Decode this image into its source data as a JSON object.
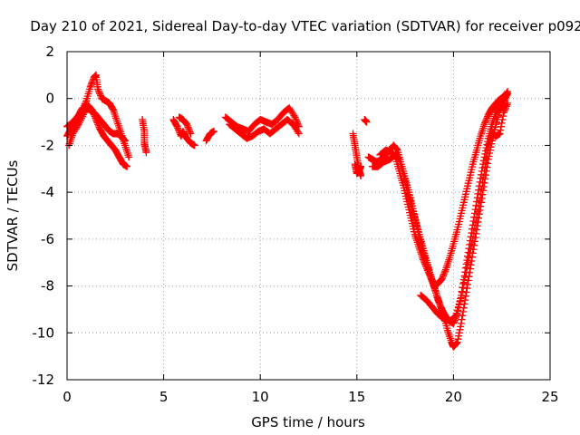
{
  "chart_data": {
    "type": "scatter",
    "title": "Day 210 of 2021, Sidereal Day-to-day VTEC variation (SDTVAR) for receiver p092",
    "xlabel": "GPS time / hours",
    "ylabel": "SDTVAR / TECUs",
    "xlim": [
      0,
      25
    ],
    "ylim": [
      -12,
      2
    ],
    "xticks": [
      0,
      5,
      10,
      15,
      20,
      25
    ],
    "yticks": [
      -12,
      -10,
      -8,
      -6,
      -4,
      -2,
      0,
      2
    ],
    "grid": true,
    "marker": "+",
    "series": [
      {
        "name": "receiver p092",
        "color": "#ff0000",
        "segments": [
          [
            [
              0.0,
              -1.6
            ],
            [
              0.2,
              -1.3
            ],
            [
              0.4,
              -1.0
            ],
            [
              0.6,
              -0.8
            ],
            [
              0.8,
              -0.5
            ],
            [
              1.0,
              -0.1
            ],
            [
              1.2,
              0.5
            ],
            [
              1.4,
              0.9
            ],
            [
              1.5,
              1.0
            ],
            [
              1.6,
              0.4
            ],
            [
              1.8,
              0.0
            ],
            [
              2.0,
              -0.1
            ],
            [
              2.2,
              -0.2
            ],
            [
              2.4,
              -0.5
            ],
            [
              2.6,
              -1.0
            ],
            [
              2.8,
              -1.5
            ],
            [
              3.0,
              -2.0
            ],
            [
              3.2,
              -2.5
            ]
          ],
          [
            [
              0.0,
              -1.2
            ],
            [
              0.3,
              -1.0
            ],
            [
              0.6,
              -0.7
            ],
            [
              0.8,
              -0.4
            ],
            [
              1.0,
              -0.4
            ],
            [
              1.2,
              -0.5
            ],
            [
              1.4,
              -0.6
            ],
            [
              1.6,
              -0.8
            ],
            [
              1.8,
              -1.0
            ],
            [
              2.0,
              -1.2
            ],
            [
              2.2,
              -1.4
            ],
            [
              2.4,
              -1.5
            ],
            [
              2.6,
              -1.5
            ],
            [
              2.8,
              -1.6
            ],
            [
              3.0,
              -1.8
            ]
          ],
          [
            [
              0.1,
              -2.0
            ],
            [
              0.3,
              -1.5
            ],
            [
              0.6,
              -1.1
            ],
            [
              0.9,
              -0.6
            ],
            [
              1.1,
              -0.3
            ],
            [
              1.3,
              -0.5
            ],
            [
              1.5,
              -0.9
            ],
            [
              1.7,
              -1.3
            ],
            [
              1.9,
              -1.6
            ],
            [
              2.1,
              -1.8
            ],
            [
              2.3,
              -2.0
            ],
            [
              2.5,
              -2.2
            ],
            [
              2.7,
              -2.5
            ],
            [
              2.9,
              -2.8
            ],
            [
              3.1,
              -2.9
            ]
          ],
          [
            [
              3.9,
              -0.9
            ],
            [
              4.0,
              -1.4
            ],
            [
              4.0,
              -1.9
            ],
            [
              4.1,
              -2.3
            ]
          ],
          [
            [
              5.5,
              -0.9
            ],
            [
              5.7,
              -1.2
            ],
            [
              5.9,
              -1.6
            ],
            [
              6.0,
              -1.4
            ],
            [
              6.2,
              -1.7
            ],
            [
              6.4,
              -1.9
            ],
            [
              6.6,
              -2.0
            ]
          ],
          [
            [
              5.8,
              -0.8
            ],
            [
              6.0,
              -0.9
            ],
            [
              6.2,
              -1.1
            ],
            [
              6.4,
              -1.5
            ]
          ],
          [
            [
              7.2,
              -1.8
            ],
            [
              7.4,
              -1.5
            ],
            [
              7.6,
              -1.4
            ]
          ],
          [
            [
              8.2,
              -0.8
            ],
            [
              8.5,
              -1.0
            ],
            [
              8.8,
              -1.2
            ],
            [
              9.1,
              -1.3
            ],
            [
              9.4,
              -1.4
            ],
            [
              9.7,
              -1.1
            ],
            [
              10.0,
              -0.9
            ],
            [
              10.3,
              -1.0
            ],
            [
              10.6,
              -1.1
            ],
            [
              10.9,
              -0.9
            ],
            [
              11.2,
              -0.6
            ],
            [
              11.5,
              -0.4
            ],
            [
              11.8,
              -0.8
            ],
            [
              12.0,
              -1.2
            ]
          ],
          [
            [
              8.4,
              -1.1
            ],
            [
              8.7,
              -1.3
            ],
            [
              9.0,
              -1.5
            ],
            [
              9.3,
              -1.7
            ],
            [
              9.6,
              -1.6
            ],
            [
              9.9,
              -1.4
            ],
            [
              10.2,
              -1.3
            ],
            [
              10.5,
              -1.5
            ],
            [
              10.8,
              -1.3
            ],
            [
              11.1,
              -1.1
            ],
            [
              11.4,
              -0.9
            ],
            [
              11.7,
              -1.1
            ],
            [
              12.0,
              -1.5
            ]
          ],
          [
            [
              14.8,
              -1.5
            ],
            [
              14.9,
              -2.0
            ],
            [
              15.0,
              -2.5
            ],
            [
              15.1,
              -3.0
            ],
            [
              15.2,
              -3.3
            ]
          ],
          [
            [
              14.9,
              -2.8
            ],
            [
              15.0,
              -3.2
            ],
            [
              15.1,
              -3.1
            ],
            [
              15.2,
              -2.9
            ]
          ],
          [
            [
              15.4,
              -0.9
            ],
            [
              15.5,
              -1.0
            ]
          ],
          [
            [
              15.6,
              -2.5
            ],
            [
              15.8,
              -2.6
            ],
            [
              16.0,
              -2.7
            ],
            [
              16.3,
              -2.6
            ],
            [
              16.6,
              -2.3
            ],
            [
              16.9,
              -2.0
            ],
            [
              17.1,
              -2.2
            ],
            [
              17.3,
              -2.8
            ],
            [
              17.5,
              -3.4
            ],
            [
              17.7,
              -4.0
            ],
            [
              17.9,
              -4.7
            ],
            [
              18.1,
              -5.4
            ],
            [
              18.3,
              -6.0
            ],
            [
              18.5,
              -6.6
            ],
            [
              18.7,
              -7.2
            ],
            [
              18.9,
              -7.8
            ],
            [
              19.1,
              -8.3
            ],
            [
              19.3,
              -8.8
            ],
            [
              19.5,
              -9.3
            ],
            [
              19.7,
              -9.9
            ],
            [
              19.9,
              -10.4
            ],
            [
              20.0,
              -10.6
            ],
            [
              20.2,
              -10.4
            ],
            [
              20.4,
              -9.6
            ],
            [
              20.6,
              -8.6
            ],
            [
              20.8,
              -7.6
            ],
            [
              21.0,
              -6.6
            ],
            [
              21.2,
              -5.6
            ],
            [
              21.4,
              -4.6
            ],
            [
              21.6,
              -3.6
            ],
            [
              21.8,
              -2.6
            ],
            [
              22.0,
              -1.8
            ],
            [
              22.2,
              -1.1
            ],
            [
              22.4,
              -0.5
            ],
            [
              22.6,
              -0.1
            ],
            [
              22.8,
              0.2
            ]
          ],
          [
            [
              15.8,
              -2.9
            ],
            [
              16.1,
              -2.9
            ],
            [
              16.4,
              -2.7
            ],
            [
              16.7,
              -2.6
            ],
            [
              17.0,
              -2.4
            ],
            [
              17.2,
              -2.6
            ],
            [
              17.4,
              -3.2
            ],
            [
              17.6,
              -3.9
            ],
            [
              17.8,
              -4.5
            ],
            [
              18.0,
              -5.1
            ],
            [
              18.2,
              -5.8
            ],
            [
              18.4,
              -6.5
            ],
            [
              18.6,
              -7.0
            ],
            [
              18.8,
              -7.5
            ],
            [
              19.0,
              -8.0
            ],
            [
              19.2,
              -8.6
            ],
            [
              19.4,
              -9.0
            ],
            [
              19.6,
              -9.3
            ],
            [
              19.8,
              -9.5
            ],
            [
              20.0,
              -9.6
            ],
            [
              20.2,
              -9.2
            ],
            [
              20.4,
              -8.4
            ],
            [
              20.6,
              -7.4
            ],
            [
              20.8,
              -6.4
            ],
            [
              21.0,
              -5.4
            ],
            [
              21.2,
              -4.4
            ],
            [
              21.4,
              -3.4
            ],
            [
              21.6,
              -2.5
            ],
            [
              21.8,
              -1.7
            ],
            [
              22.0,
              -1.1
            ],
            [
              22.2,
              -0.6
            ],
            [
              22.4,
              -0.3
            ],
            [
              22.6,
              0.0
            ],
            [
              22.8,
              0.3
            ]
          ],
          [
            [
              16.2,
              -2.4
            ],
            [
              16.5,
              -2.2
            ],
            [
              16.8,
              -2.3
            ],
            [
              17.0,
              -2.5
            ],
            [
              17.2,
              -3.1
            ],
            [
              17.4,
              -3.7
            ],
            [
              17.6,
              -4.4
            ],
            [
              17.8,
              -5.1
            ],
            [
              18.0,
              -5.8
            ],
            [
              18.2,
              -6.3
            ],
            [
              18.4,
              -6.8
            ],
            [
              18.6,
              -7.2
            ],
            [
              18.8,
              -7.6
            ],
            [
              19.0,
              -8.0
            ],
            [
              19.2,
              -7.9
            ],
            [
              19.4,
              -7.7
            ],
            [
              19.6,
              -7.3
            ],
            [
              19.8,
              -6.8
            ],
            [
              20.0,
              -6.2
            ],
            [
              20.2,
              -5.6
            ],
            [
              20.4,
              -4.9
            ],
            [
              20.6,
              -4.2
            ],
            [
              20.8,
              -3.5
            ],
            [
              21.0,
              -2.8
            ],
            [
              21.2,
              -2.2
            ],
            [
              21.4,
              -1.6
            ],
            [
              21.6,
              -1.1
            ],
            [
              21.8,
              -0.7
            ],
            [
              22.0,
              -0.4
            ],
            [
              22.3,
              -0.1
            ],
            [
              22.6,
              0.1
            ],
            [
              22.8,
              0.2
            ]
          ],
          [
            [
              18.3,
              -8.4
            ],
            [
              18.6,
              -8.6
            ],
            [
              18.9,
              -8.9
            ],
            [
              19.2,
              -9.2
            ],
            [
              19.5,
              -9.4
            ],
            [
              19.8,
              -9.5
            ],
            [
              20.1,
              -9.3
            ],
            [
              20.4,
              -8.5
            ],
            [
              20.7,
              -7.2
            ],
            [
              21.0,
              -6.0
            ],
            [
              21.3,
              -4.6
            ],
            [
              21.6,
              -3.1
            ],
            [
              21.8,
              -2.0
            ],
            [
              22.0,
              -1.5
            ],
            [
              22.2,
              -1.6
            ],
            [
              22.4,
              -1.5
            ],
            [
              22.6,
              -0.6
            ],
            [
              22.8,
              -0.2
            ]
          ]
        ]
      }
    ]
  }
}
